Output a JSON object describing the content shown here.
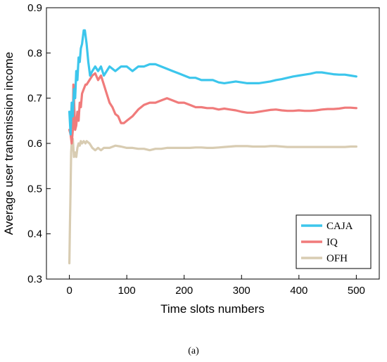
{
  "chart_data": {
    "type": "line",
    "xlabel": "Time slots numbers",
    "ylabel": "Average user transmission income",
    "xlim": [
      -40,
      540
    ],
    "ylim": [
      0.3,
      0.9
    ],
    "x_ticks": [
      "0",
      "100",
      "200",
      "300",
      "400",
      "500"
    ],
    "y_ticks": [
      "0.3",
      "0.4",
      "0.5",
      "0.6",
      "0.7",
      "0.8",
      "0.9"
    ],
    "legend_position": "bottom-right",
    "series": [
      {
        "name": "CAJA",
        "color": "#3cc6ec",
        "points": [
          [
            0,
            0.67
          ],
          [
            2,
            0.62
          ],
          [
            4,
            0.69
          ],
          [
            6,
            0.66
          ],
          [
            8,
            0.72
          ],
          [
            10,
            0.7
          ],
          [
            12,
            0.76
          ],
          [
            14,
            0.74
          ],
          [
            16,
            0.79
          ],
          [
            18,
            0.78
          ],
          [
            20,
            0.81
          ],
          [
            22,
            0.82
          ],
          [
            25,
            0.85
          ],
          [
            27,
            0.85
          ],
          [
            30,
            0.82
          ],
          [
            33,
            0.78
          ],
          [
            36,
            0.75
          ],
          [
            40,
            0.76
          ],
          [
            45,
            0.77
          ],
          [
            50,
            0.76
          ],
          [
            55,
            0.77
          ],
          [
            60,
            0.75
          ],
          [
            70,
            0.77
          ],
          [
            80,
            0.76
          ],
          [
            90,
            0.77
          ],
          [
            100,
            0.77
          ],
          [
            110,
            0.76
          ],
          [
            120,
            0.77
          ],
          [
            130,
            0.77
          ],
          [
            140,
            0.775
          ],
          [
            150,
            0.775
          ],
          [
            160,
            0.77
          ],
          [
            170,
            0.765
          ],
          [
            180,
            0.76
          ],
          [
            190,
            0.755
          ],
          [
            200,
            0.75
          ],
          [
            210,
            0.745
          ],
          [
            220,
            0.745
          ],
          [
            230,
            0.74
          ],
          [
            240,
            0.74
          ],
          [
            250,
            0.74
          ],
          [
            260,
            0.735
          ],
          [
            270,
            0.733
          ],
          [
            280,
            0.735
          ],
          [
            290,
            0.737
          ],
          [
            300,
            0.735
          ],
          [
            310,
            0.733
          ],
          [
            320,
            0.733
          ],
          [
            330,
            0.733
          ],
          [
            340,
            0.735
          ],
          [
            350,
            0.737
          ],
          [
            360,
            0.74
          ],
          [
            370,
            0.742
          ],
          [
            380,
            0.745
          ],
          [
            390,
            0.748
          ],
          [
            400,
            0.75
          ],
          [
            410,
            0.752
          ],
          [
            420,
            0.754
          ],
          [
            430,
            0.757
          ],
          [
            440,
            0.757
          ],
          [
            450,
            0.755
          ],
          [
            460,
            0.753
          ],
          [
            470,
            0.752
          ],
          [
            480,
            0.752
          ],
          [
            490,
            0.75
          ],
          [
            500,
            0.748
          ]
        ]
      },
      {
        "name": "IQ",
        "color": "#f07b7b",
        "points": [
          [
            0,
            0.63
          ],
          [
            2,
            0.62
          ],
          [
            4,
            0.6
          ],
          [
            6,
            0.63
          ],
          [
            7,
            0.73
          ],
          [
            8,
            0.7
          ],
          [
            10,
            0.63
          ],
          [
            12,
            0.64
          ],
          [
            14,
            0.67
          ],
          [
            16,
            0.65
          ],
          [
            18,
            0.69
          ],
          [
            20,
            0.68
          ],
          [
            22,
            0.71
          ],
          [
            25,
            0.72
          ],
          [
            28,
            0.73
          ],
          [
            30,
            0.73
          ],
          [
            35,
            0.74
          ],
          [
            40,
            0.75
          ],
          [
            45,
            0.755
          ],
          [
            50,
            0.74
          ],
          [
            55,
            0.75
          ],
          [
            60,
            0.73
          ],
          [
            65,
            0.71
          ],
          [
            70,
            0.69
          ],
          [
            75,
            0.68
          ],
          [
            80,
            0.665
          ],
          [
            85,
            0.66
          ],
          [
            90,
            0.645
          ],
          [
            95,
            0.645
          ],
          [
            100,
            0.65
          ],
          [
            110,
            0.66
          ],
          [
            120,
            0.675
          ],
          [
            130,
            0.685
          ],
          [
            140,
            0.69
          ],
          [
            150,
            0.69
          ],
          [
            160,
            0.695
          ],
          [
            170,
            0.7
          ],
          [
            180,
            0.695
          ],
          [
            190,
            0.69
          ],
          [
            200,
            0.69
          ],
          [
            210,
            0.685
          ],
          [
            220,
            0.68
          ],
          [
            230,
            0.68
          ],
          [
            240,
            0.678
          ],
          [
            250,
            0.678
          ],
          [
            260,
            0.675
          ],
          [
            270,
            0.677
          ],
          [
            280,
            0.675
          ],
          [
            290,
            0.673
          ],
          [
            300,
            0.67
          ],
          [
            310,
            0.668
          ],
          [
            320,
            0.668
          ],
          [
            330,
            0.67
          ],
          [
            340,
            0.672
          ],
          [
            350,
            0.674
          ],
          [
            360,
            0.675
          ],
          [
            370,
            0.673
          ],
          [
            380,
            0.672
          ],
          [
            390,
            0.672
          ],
          [
            400,
            0.673
          ],
          [
            410,
            0.672
          ],
          [
            420,
            0.672
          ],
          [
            430,
            0.673
          ],
          [
            440,
            0.675
          ],
          [
            450,
            0.676
          ],
          [
            460,
            0.676
          ],
          [
            470,
            0.677
          ],
          [
            480,
            0.679
          ],
          [
            490,
            0.679
          ],
          [
            500,
            0.678
          ]
        ]
      },
      {
        "name": "OFH",
        "color": "#d8ccb2",
        "points": [
          [
            0,
            0.335
          ],
          [
            1,
            0.42
          ],
          [
            2,
            0.5
          ],
          [
            3,
            0.58
          ],
          [
            4,
            0.6
          ],
          [
            6,
            0.61
          ],
          [
            8,
            0.57
          ],
          [
            10,
            0.58
          ],
          [
            12,
            0.57
          ],
          [
            14,
            0.59
          ],
          [
            16,
            0.6
          ],
          [
            18,
            0.595
          ],
          [
            20,
            0.605
          ],
          [
            22,
            0.6
          ],
          [
            25,
            0.605
          ],
          [
            28,
            0.6
          ],
          [
            30,
            0.605
          ],
          [
            35,
            0.6
          ],
          [
            40,
            0.59
          ],
          [
            45,
            0.585
          ],
          [
            50,
            0.59
          ],
          [
            55,
            0.585
          ],
          [
            60,
            0.59
          ],
          [
            70,
            0.59
          ],
          [
            80,
            0.595
          ],
          [
            90,
            0.593
          ],
          [
            100,
            0.59
          ],
          [
            110,
            0.59
          ],
          [
            120,
            0.588
          ],
          [
            130,
            0.588
          ],
          [
            140,
            0.585
          ],
          [
            150,
            0.588
          ],
          [
            160,
            0.588
          ],
          [
            170,
            0.59
          ],
          [
            180,
            0.59
          ],
          [
            190,
            0.59
          ],
          [
            200,
            0.59
          ],
          [
            210,
            0.59
          ],
          [
            220,
            0.591
          ],
          [
            230,
            0.591
          ],
          [
            240,
            0.59
          ],
          [
            250,
            0.59
          ],
          [
            260,
            0.591
          ],
          [
            270,
            0.592
          ],
          [
            280,
            0.593
          ],
          [
            290,
            0.594
          ],
          [
            300,
            0.594
          ],
          [
            310,
            0.594
          ],
          [
            320,
            0.593
          ],
          [
            330,
            0.593
          ],
          [
            340,
            0.593
          ],
          [
            350,
            0.594
          ],
          [
            360,
            0.594
          ],
          [
            370,
            0.593
          ],
          [
            380,
            0.592
          ],
          [
            390,
            0.592
          ],
          [
            400,
            0.592
          ],
          [
            410,
            0.592
          ],
          [
            420,
            0.592
          ],
          [
            430,
            0.592
          ],
          [
            440,
            0.592
          ],
          [
            450,
            0.592
          ],
          [
            460,
            0.592
          ],
          [
            470,
            0.592
          ],
          [
            480,
            0.592
          ],
          [
            490,
            0.593
          ],
          [
            500,
            0.593
          ]
        ]
      }
    ]
  },
  "caption": "(a)"
}
